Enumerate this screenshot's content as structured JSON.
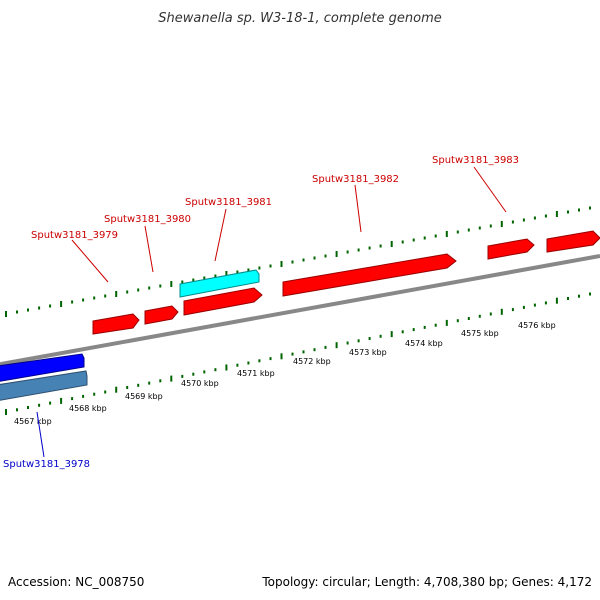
{
  "title": "Shewanella sp. W3-18-1, complete genome",
  "footer": {
    "accession": "Accession: NC_008750",
    "summary": "Topology: circular; Length: 4,708,380 bp; Genes: 4,172"
  },
  "colors": {
    "forward_strand": "#ff0000",
    "reverse_strand": "#0000ff",
    "reverse_strand_alt": "#4682b4",
    "highlight": "#00ffff",
    "backbone": "#888888",
    "ticks": "#006400",
    "label_forward": "#cc0000",
    "label_reverse": "#0000cc"
  },
  "scale_labels": [
    "4567 kbp",
    "4568 kbp",
    "4569 kbp",
    "4570 kbp",
    "4571 kbp",
    "4572 kbp",
    "4573 kbp",
    "4574 kbp",
    "4575 kbp",
    "4576 kbp"
  ],
  "gene_labels": {
    "g3978": "Sputw3181_3978",
    "g3979": "Sputw3181_3979",
    "g3980": "Sputw3181_3980",
    "g3981": "Sputw3181_3981",
    "g3982": "Sputw3181_3982",
    "g3983": "Sputw3181_3983"
  }
}
